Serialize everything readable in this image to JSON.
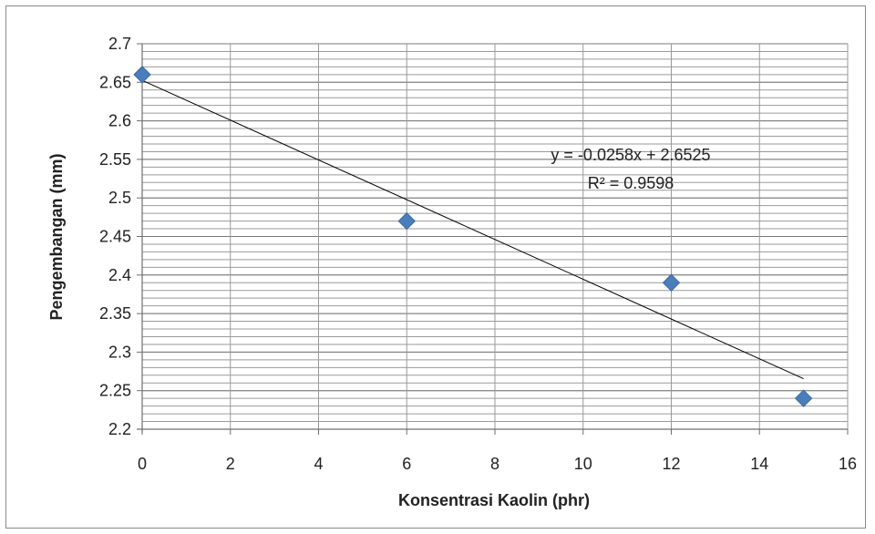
{
  "chart_data": {
    "type": "scatter",
    "title": "",
    "xlabel": "Konsentrasi Kaolin (phr)",
    "ylabel": "Pengembangan (mm)",
    "xlim": [
      0,
      16
    ],
    "ylim": [
      2.2,
      2.7
    ],
    "x_ticks": [
      0,
      2,
      4,
      6,
      8,
      10,
      12,
      14,
      16
    ],
    "y_ticks": [
      2.2,
      2.25,
      2.3,
      2.35,
      2.4,
      2.45,
      2.5,
      2.55,
      2.6,
      2.65,
      2.7
    ],
    "x_tick_labels": [
      "0",
      "2",
      "4",
      "6",
      "8",
      "10",
      "12",
      "14",
      "16"
    ],
    "y_tick_labels": [
      "2.2",
      "2.25",
      "2.3",
      "2.35",
      "2.4",
      "2.45",
      "2.5",
      "2.55",
      "2.6",
      "2.65",
      "2.7"
    ],
    "minor_grid_step": 0.01,
    "grid": true,
    "legend": "none",
    "marker": "diamond",
    "marker_color": "#4a7ebb",
    "series": [
      {
        "x": [
          0,
          6,
          12,
          15
        ],
        "y": [
          2.66,
          2.47,
          2.39,
          2.24
        ]
      }
    ],
    "trendline": {
      "type": "linear",
      "slope": -0.0258,
      "intercept": 2.6525,
      "x_range": [
        0,
        15
      ],
      "color": "#000000",
      "equation_label": "y = -0.0258x + 2.6525",
      "r2_label": "R² = 0.9598"
    }
  }
}
